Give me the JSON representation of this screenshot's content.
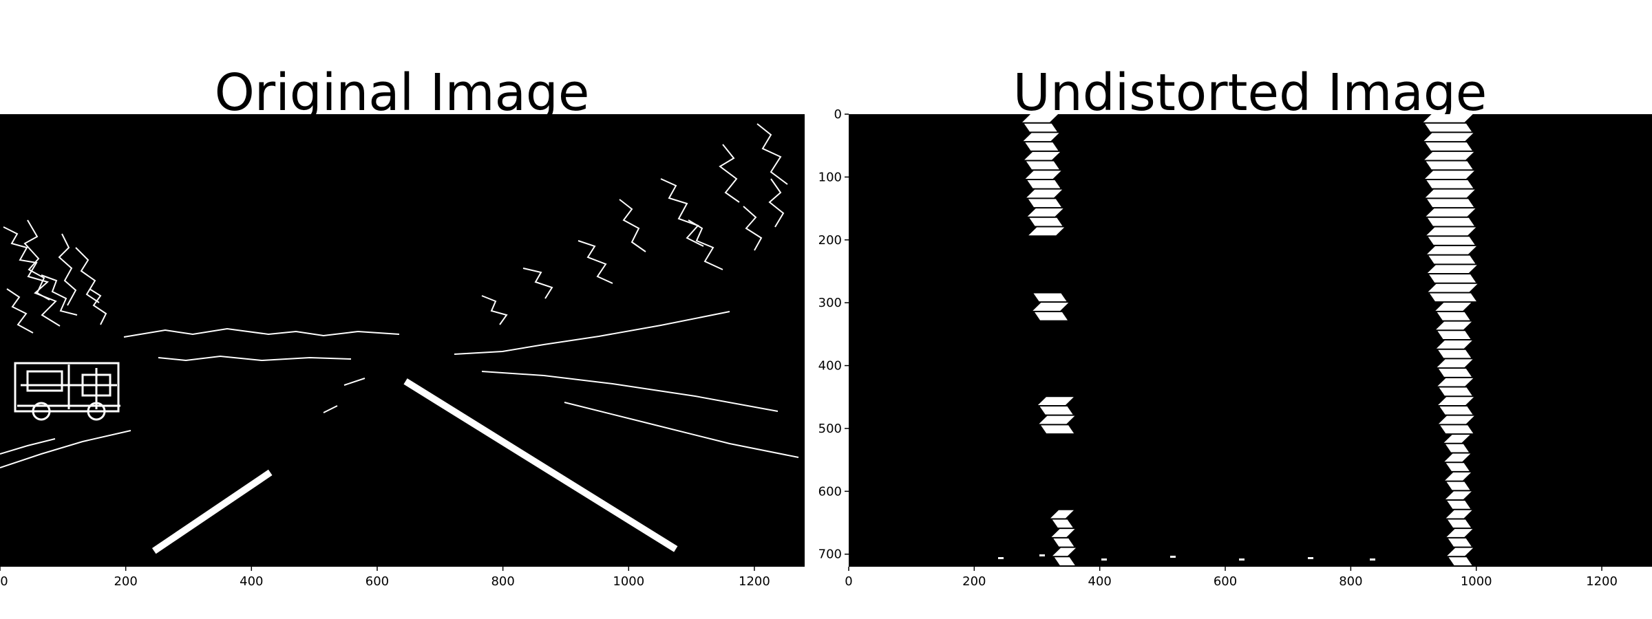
{
  "chart_data": [
    {
      "type": "image",
      "title": "Original Image",
      "content": "thresholded binary road image",
      "xlim": [
        0,
        1280
      ],
      "ylim": [
        720,
        0
      ],
      "x_ticks": [
        0,
        200,
        400,
        600,
        800,
        1000,
        1200
      ],
      "y_ticks": [],
      "lane_lines": [
        {
          "name": "",
          "x": [
            245,
            430
          ],
          "y": [
            695,
            570
          ]
        },
        {
          "name": "",
          "x": [
            645,
            1075
          ],
          "y": [
            425,
            692
          ]
        }
      ]
    },
    {
      "type": "image",
      "title": "Undistorted Image",
      "content": "bird's-eye warped binary lane image",
      "xlim": [
        0,
        1280
      ],
      "ylim": [
        720,
        0
      ],
      "x_ticks": [
        0,
        200,
        400,
        600,
        800,
        1000,
        1200
      ],
      "y_ticks": [
        0,
        100,
        200,
        300,
        400,
        500,
        600,
        700
      ],
      "lane_lines": [
        {
          "name": "",
          "x": [
            305,
            345
          ],
          "y": [
            0,
            720
          ]
        },
        {
          "name": "",
          "x": [
            955,
            975
          ],
          "y": [
            0,
            720
          ]
        }
      ]
    }
  ]
}
